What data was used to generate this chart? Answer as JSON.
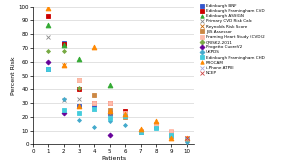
{
  "title": "",
  "xlabel": "Patients",
  "ylabel": "Percent Risk",
  "xlim": [
    0.5,
    10.5
  ],
  "ylim": [
    0,
    100
  ],
  "yticks": [
    0,
    10,
    20,
    30,
    40,
    50,
    60,
    70,
    80,
    90,
    100
  ],
  "xticks": [
    0,
    1,
    2,
    3,
    4,
    5,
    6,
    7,
    8,
    9,
    10
  ],
  "series": [
    {
      "name": "Edinburgh BNF",
      "color": "#3355cc",
      "marker": "s",
      "markersize": 2.5,
      "data": [
        [
          1,
          55
        ],
        [
          2,
          74
        ],
        [
          3,
          28
        ],
        [
          4,
          29
        ],
        [
          5,
          23
        ],
        [
          6,
          23
        ],
        [
          7,
          9
        ],
        [
          8,
          13
        ],
        [
          9,
          8
        ],
        [
          10,
          4
        ]
      ]
    },
    {
      "name": "Edinburgh Framingham CVD",
      "color": "#cc0000",
      "marker": "s",
      "markersize": 2.5,
      "data": [
        [
          1,
          93
        ],
        [
          2,
          73
        ],
        [
          3,
          40
        ],
        [
          4,
          30
        ],
        [
          5,
          30
        ],
        [
          6,
          24
        ],
        [
          7,
          10
        ],
        [
          8,
          14
        ],
        [
          9,
          9
        ],
        [
          10,
          5
        ]
      ]
    },
    {
      "name": "Edinburgh ASSIGN",
      "color": "#33aa33",
      "marker": "^",
      "markersize": 3.5,
      "data": [
        [
          1,
          87
        ],
        [
          2,
          72
        ],
        [
          3,
          62
        ],
        [
          5,
          43
        ]
      ]
    },
    {
      "name": "Primary CVD Risk Calc",
      "color": "#888888",
      "marker": "x",
      "markersize": 3.5,
      "data": [
        [
          1,
          78
        ],
        [
          2,
          32
        ],
        [
          3,
          33
        ],
        [
          4,
          26
        ],
        [
          5,
          22
        ],
        [
          6,
          21
        ],
        [
          7,
          9
        ],
        [
          8,
          13
        ],
        [
          9,
          7
        ],
        [
          10,
          4
        ]
      ]
    },
    {
      "name": "Reynolds Risk Score",
      "color": "#cc6600",
      "marker": "x",
      "markersize": 3.5,
      "data": [
        [
          2,
          58
        ]
      ]
    },
    {
      "name": "JBS Assessor",
      "color": "#cc8844",
      "marker": "s",
      "markersize": 2.5,
      "data": [
        [
          3,
          47
        ],
        [
          4,
          36
        ],
        [
          5,
          25
        ],
        [
          6,
          20
        ],
        [
          7,
          10
        ],
        [
          8,
          15
        ],
        [
          9,
          6
        ],
        [
          10,
          5
        ]
      ]
    },
    {
      "name": "Framing Heart Study (CVD)2",
      "color": "#ffbbaa",
      "marker": "s",
      "markersize": 2.5,
      "data": [
        [
          3,
          47
        ],
        [
          4,
          30
        ],
        [
          5,
          30
        ],
        [
          6,
          23
        ],
        [
          7,
          10
        ],
        [
          8,
          15
        ],
        [
          9,
          10
        ],
        [
          10,
          5
        ]
      ]
    },
    {
      "name": "QRISK2-2011",
      "color": "#77aa44",
      "marker": "D",
      "markersize": 2.0,
      "data": [
        [
          1,
          68
        ],
        [
          2,
          68
        ],
        [
          3,
          41
        ]
      ]
    },
    {
      "name": "Progetto CuoreV2",
      "color": "#660099",
      "marker": "D",
      "markersize": 2.5,
      "data": [
        [
          1,
          60
        ],
        [
          2,
          23
        ],
        [
          5,
          7
        ]
      ]
    },
    {
      "name": "UKPDS",
      "color": "#44aacc",
      "marker": "D",
      "markersize": 2.0,
      "data": [
        [
          2,
          33
        ],
        [
          3,
          18
        ],
        [
          4,
          13
        ],
        [
          5,
          17
        ],
        [
          6,
          14
        ],
        [
          10,
          2
        ]
      ]
    },
    {
      "name": "Edinburgh Framingham CHD",
      "color": "#44ccdd",
      "marker": "s",
      "markersize": 2.5,
      "data": [
        [
          1,
          55
        ],
        [
          2,
          25
        ],
        [
          3,
          23
        ],
        [
          4,
          26
        ],
        [
          5,
          19
        ],
        [
          6,
          21
        ],
        [
          7,
          9
        ],
        [
          8,
          12
        ],
        [
          9,
          7
        ],
        [
          10,
          4
        ]
      ]
    },
    {
      "name": "PROCAM",
      "color": "#ff8800",
      "marker": "^",
      "markersize": 3.5,
      "data": [
        [
          1,
          99
        ],
        [
          2,
          58
        ],
        [
          3,
          28
        ],
        [
          4,
          71
        ],
        [
          5,
          24
        ],
        [
          6,
          22
        ],
        [
          7,
          11
        ],
        [
          8,
          17
        ],
        [
          9,
          5
        ],
        [
          10,
          5
        ]
      ]
    },
    {
      "name": "i-Phone ATPIII",
      "color": "#aaaadd",
      "marker": "x",
      "markersize": 3.5,
      "data": [
        [
          10,
          4
        ]
      ]
    },
    {
      "name": "NCEP",
      "color": "#cc4444",
      "marker": "x",
      "markersize": 3.5,
      "data": [
        [
          10,
          5
        ]
      ]
    }
  ],
  "background_color": "#ffffff",
  "grid_color": "#cccccc"
}
